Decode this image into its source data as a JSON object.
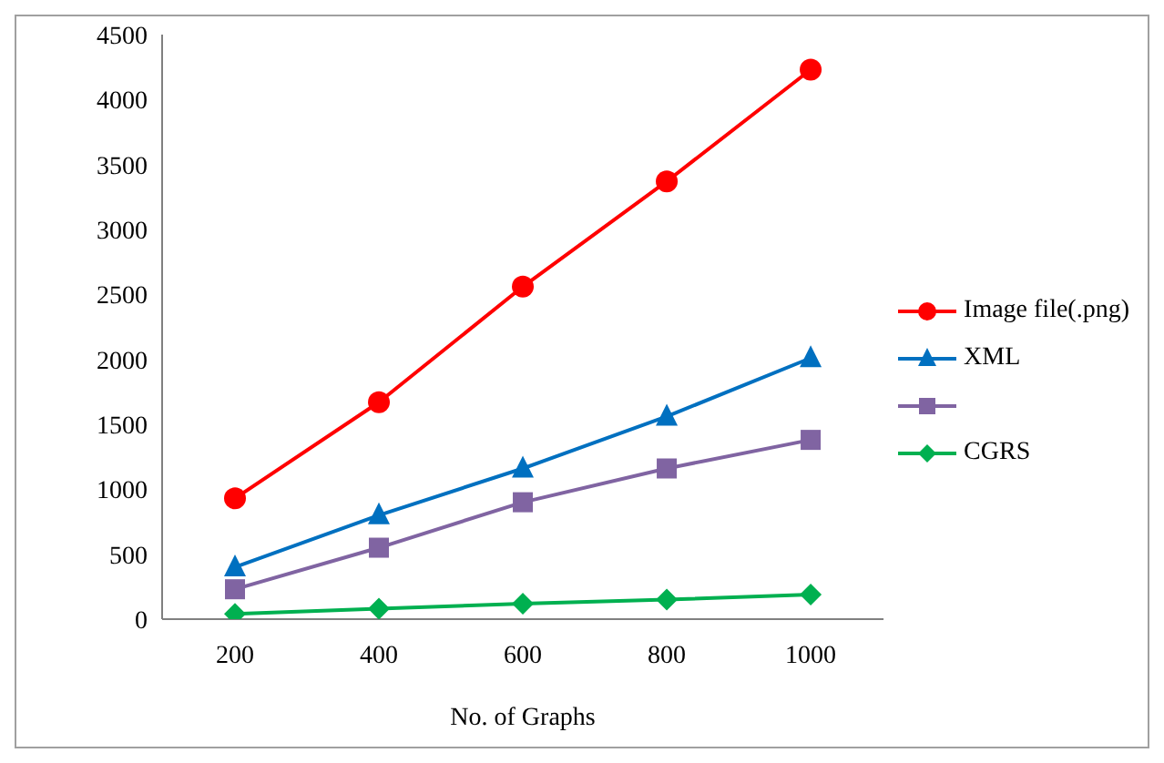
{
  "chart_data": {
    "type": "line",
    "xlabel": "No. of Graphs",
    "categories": [
      "200",
      "400",
      "600",
      "800",
      "1000"
    ],
    "series": [
      {
        "name": "Image file(.png)",
        "color": "#ff0000",
        "marker": "circle",
        "values": [
          930,
          1670,
          2560,
          3370,
          4230
        ]
      },
      {
        "name": "XML",
        "color": "#0070c0",
        "marker": "triangle",
        "values": [
          400,
          800,
          1160,
          1560,
          2010
        ]
      },
      {
        "color": "#8064a2",
        "marker": "square",
        "values": [
          230,
          550,
          900,
          1160,
          1380
        ]
      },
      {
        "name": "CGRS",
        "color": "#00b050",
        "marker": "diamond",
        "values": [
          40,
          80,
          120,
          150,
          190
        ]
      }
    ],
    "ylim": [
      0,
      4500
    ],
    "yticks": [
      0,
      500,
      1000,
      1500,
      2000,
      2500,
      3000,
      3500,
      4000,
      4500
    ],
    "grid": false,
    "legend": "right"
  }
}
